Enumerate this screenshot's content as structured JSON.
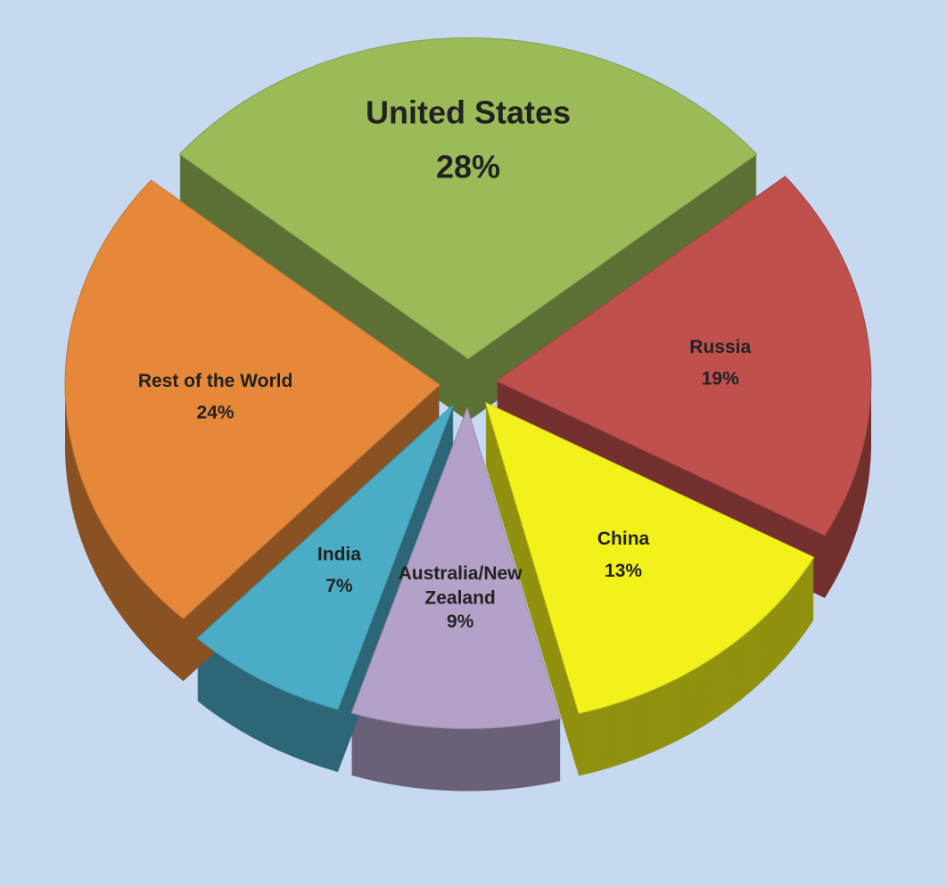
{
  "chart_data": {
    "type": "pie",
    "categories": [
      "United States",
      "Russia",
      "China",
      "Australia/New Zealand",
      "India",
      "Rest of the World"
    ],
    "values": [
      28,
      19,
      13,
      9,
      7,
      24
    ],
    "value_labels": [
      "28%",
      "19%",
      "13%",
      "9%",
      "7%",
      "24%"
    ],
    "colors": [
      "#9bbb59",
      "#c0504d",
      "#f2f21a",
      "#b3a2c7",
      "#4bacc6",
      "#e6883a"
    ]
  }
}
